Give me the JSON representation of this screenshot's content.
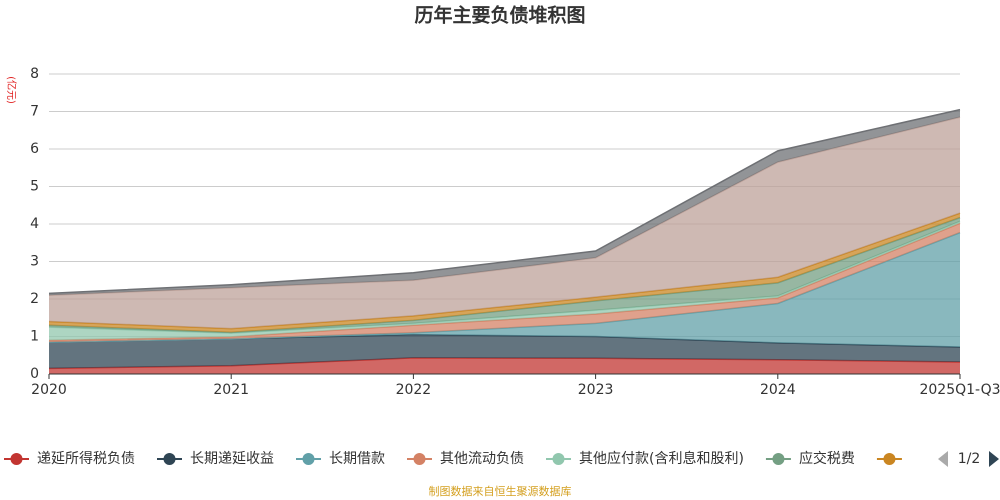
{
  "chart_data": {
    "type": "stacked-area",
    "title": "历年主要负债堆积图",
    "y_label": "(亿元)",
    "source": "制图数据来自恒生聚源数据库",
    "legend_page": "1/2",
    "categories": [
      "2020",
      "2021",
      "2022",
      "2023",
      "2024",
      "2025Q1-Q3"
    ],
    "ylim": [
      0,
      8
    ],
    "yticks": [
      0,
      1,
      2,
      3,
      4,
      5,
      6,
      7,
      8
    ],
    "grid": true,
    "series": [
      {
        "name": "递延所得税负债",
        "color": "#c23531",
        "values": [
          0.15,
          0.22,
          0.43,
          0.42,
          0.38,
          0.32
        ]
      },
      {
        "name": "长期递延收益",
        "color": "#2f4554",
        "values": [
          0.7,
          0.72,
          0.62,
          0.58,
          0.45,
          0.4
        ]
      },
      {
        "name": "长期借款",
        "color": "#61a0a8",
        "values": [
          0,
          0,
          0.05,
          0.35,
          1.05,
          3.05
        ]
      },
      {
        "name": "其他流动负债",
        "color": "#d48265",
        "values": [
          0.05,
          0.05,
          0.2,
          0.25,
          0.15,
          0.25
        ]
      },
      {
        "name": "其他应付款(含利息和股利)",
        "color": "#91c7ae",
        "values": [
          0.35,
          0.1,
          0.05,
          0.1,
          0.05,
          0.05
        ]
      },
      {
        "name": "应交税费",
        "color": "#749f83",
        "values": [
          0.05,
          0.02,
          0.08,
          0.25,
          0.35,
          0.1
        ]
      },
      {
        "color": "#ca8622",
        "values": [
          0.1,
          0.1,
          0.12,
          0.1,
          0.15,
          0.12
        ]
      },
      {
        "color": "#bda29a",
        "values": [
          0.7,
          1.09,
          0.95,
          1.05,
          3.07,
          2.56
        ]
      },
      {
        "color": "#6e7074",
        "values": [
          0.05,
          0.08,
          0.2,
          0.18,
          0.3,
          0.2
        ]
      }
    ]
  }
}
